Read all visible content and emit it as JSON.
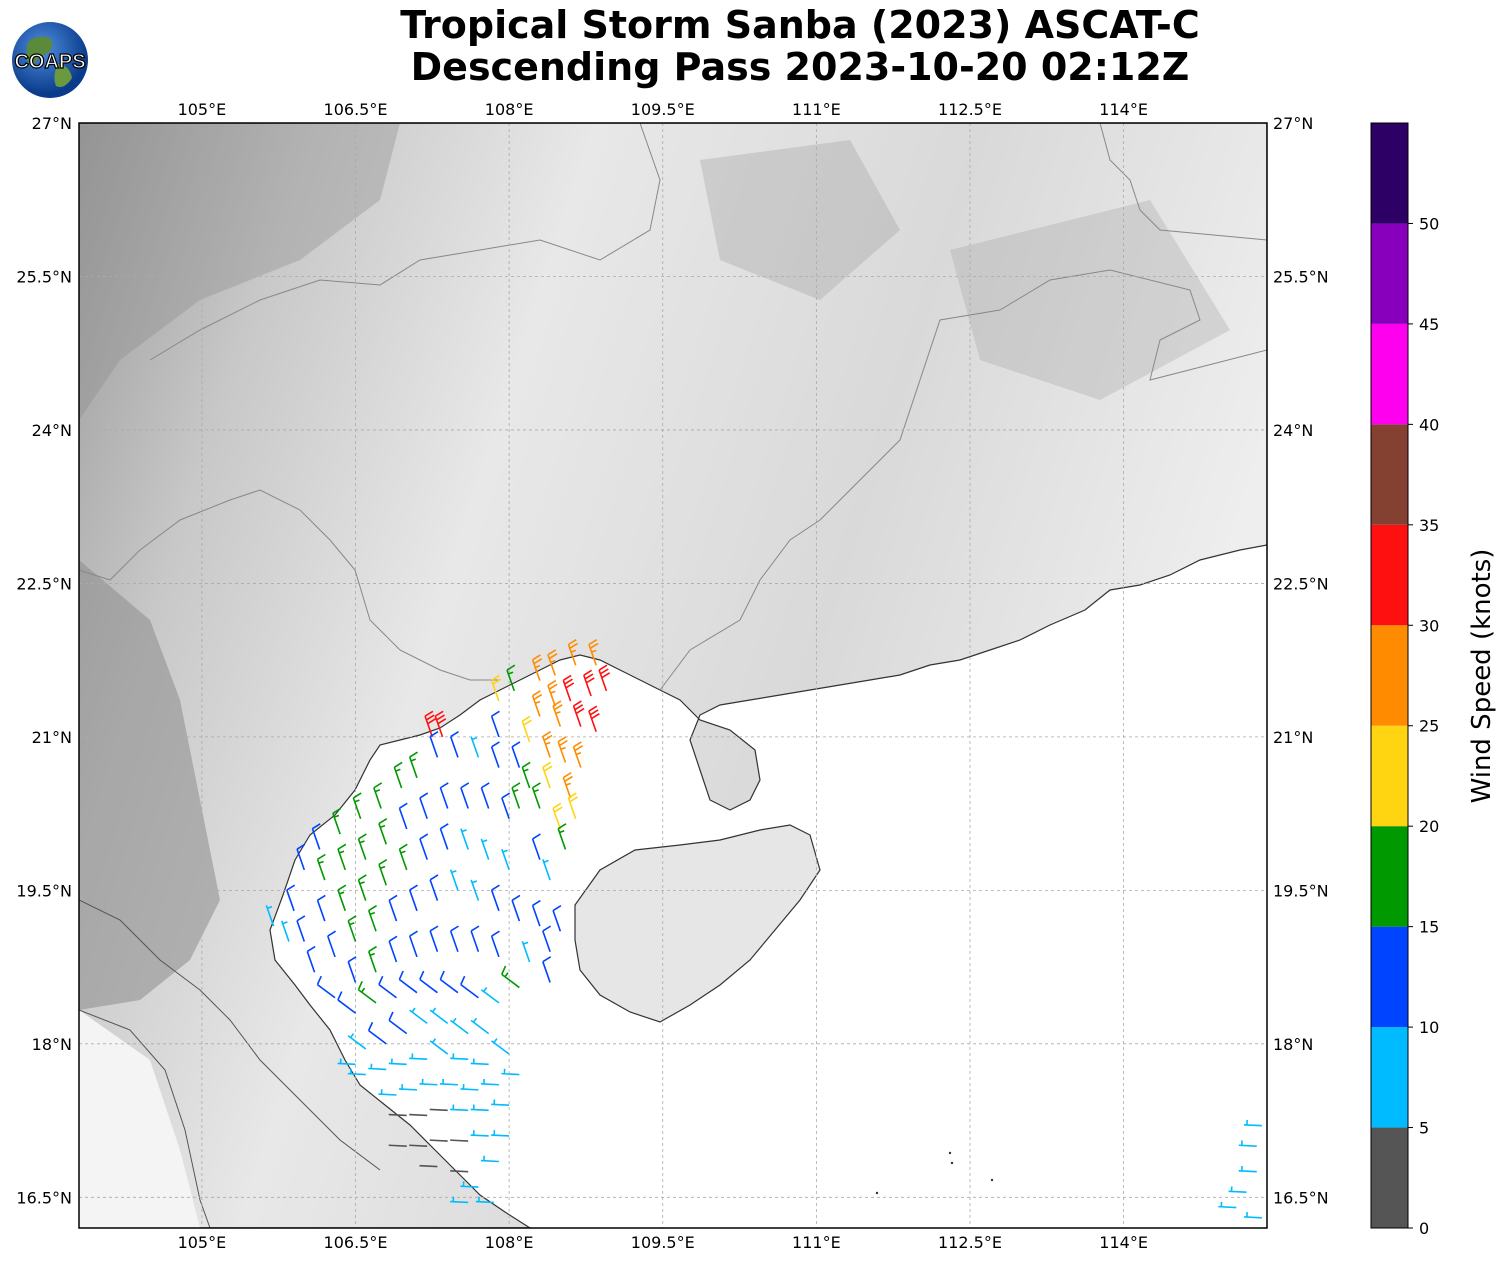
{
  "title": {
    "line1": "Tropical Storm Sanba (2023) ASCAT-C",
    "line2": "Descending Pass 2023-10-20 02:12Z"
  },
  "logo": {
    "text": "COAPS",
    "icon": "globe-logo-icon"
  },
  "map": {
    "lon_range": [
      103.8,
      115.4
    ],
    "lat_range": [
      16.2,
      27.0
    ],
    "lon_ticks": [
      105,
      106.5,
      108,
      109.5,
      111,
      112.5,
      114
    ],
    "lon_tick_labels": [
      "105°E",
      "106.5°E",
      "108°E",
      "109.5°E",
      "111°E",
      "112.5°E",
      "114°E"
    ],
    "lat_ticks": [
      27,
      25.5,
      24,
      22.5,
      21,
      19.5,
      18,
      16.5
    ],
    "lat_tick_labels": [
      "27°N",
      "25.5°N",
      "24°N",
      "22.5°N",
      "21°N",
      "19.5°N",
      "18°N",
      "16.5°N"
    ],
    "grid": true,
    "background": "grayscale topography"
  },
  "colorbar": {
    "label": "Wind Speed (knots)",
    "ticks": [
      0,
      5,
      10,
      15,
      20,
      25,
      30,
      35,
      40,
      45,
      50
    ],
    "tick_labels": [
      "0",
      "5",
      "10",
      "15",
      "20",
      "25",
      "30",
      "35",
      "40",
      "45",
      "50"
    ],
    "bins": [
      {
        "from": 0,
        "to": 5,
        "color": "#555555"
      },
      {
        "from": 5,
        "to": 10,
        "color": "#00bbff"
      },
      {
        "from": 10,
        "to": 15,
        "color": "#0044ff"
      },
      {
        "from": 15,
        "to": 20,
        "color": "#009900"
      },
      {
        "from": 20,
        "to": 25,
        "color": "#ffd410"
      },
      {
        "from": 25,
        "to": 30,
        "color": "#ff8c00"
      },
      {
        "from": 30,
        "to": 35,
        "color": "#ff1010"
      },
      {
        "from": 35,
        "to": 40,
        "color": "#844030"
      },
      {
        "from": 40,
        "to": 45,
        "color": "#ff00ee"
      },
      {
        "from": 45,
        "to": 50,
        "color": "#8800bb"
      },
      {
        "from": 50,
        "to": 55,
        "color": "#2d0066"
      }
    ]
  },
  "chart_data": {
    "type": "scatter",
    "description_free": true,
    "series": [
      {
        "name": "",
        "wind_barbs": [
          {
            "lon": 107.25,
            "lat": 21.0,
            "spd": 32
          },
          {
            "lon": 107.35,
            "lat": 21.0,
            "spd": 32
          },
          {
            "lon": 107.9,
            "lat": 21.35,
            "spd": 22
          },
          {
            "lon": 108.05,
            "lat": 21.45,
            "spd": 17
          },
          {
            "lon": 108.3,
            "lat": 21.55,
            "spd": 27
          },
          {
            "lon": 108.45,
            "lat": 21.6,
            "spd": 27
          },
          {
            "lon": 108.65,
            "lat": 21.7,
            "spd": 27
          },
          {
            "lon": 108.85,
            "lat": 21.7,
            "spd": 27
          },
          {
            "lon": 108.45,
            "lat": 21.3,
            "spd": 27
          },
          {
            "lon": 108.6,
            "lat": 21.35,
            "spd": 31
          },
          {
            "lon": 108.8,
            "lat": 21.4,
            "spd": 32
          },
          {
            "lon": 108.95,
            "lat": 21.45,
            "spd": 32
          },
          {
            "lon": 108.3,
            "lat": 21.2,
            "spd": 27
          },
          {
            "lon": 108.5,
            "lat": 21.1,
            "spd": 27
          },
          {
            "lon": 108.7,
            "lat": 21.1,
            "spd": 31
          },
          {
            "lon": 108.85,
            "lat": 21.05,
            "spd": 32
          },
          {
            "lon": 108.2,
            "lat": 20.95,
            "spd": 22
          },
          {
            "lon": 108.4,
            "lat": 20.8,
            "spd": 27
          },
          {
            "lon": 108.55,
            "lat": 20.75,
            "spd": 27
          },
          {
            "lon": 108.7,
            "lat": 20.7,
            "spd": 27
          },
          {
            "lon": 108.2,
            "lat": 20.5,
            "spd": 17
          },
          {
            "lon": 108.4,
            "lat": 20.5,
            "spd": 22
          },
          {
            "lon": 108.6,
            "lat": 20.4,
            "spd": 27
          },
          {
            "lon": 108.65,
            "lat": 20.2,
            "spd": 22
          },
          {
            "lon": 108.1,
            "lat": 20.3,
            "spd": 17
          },
          {
            "lon": 108.3,
            "lat": 20.3,
            "spd": 17
          },
          {
            "lon": 108.5,
            "lat": 20.1,
            "spd": 22
          },
          {
            "lon": 108.55,
            "lat": 19.9,
            "spd": 17
          },
          {
            "lon": 107.3,
            "lat": 20.8,
            "spd": 12
          },
          {
            "lon": 107.5,
            "lat": 20.8,
            "spd": 12
          },
          {
            "lon": 107.7,
            "lat": 20.8,
            "spd": 7
          },
          {
            "lon": 107.9,
            "lat": 20.7,
            "spd": 12
          },
          {
            "lon": 108.1,
            "lat": 20.7,
            "spd": 12
          },
          {
            "lon": 107.9,
            "lat": 21.0,
            "spd": 12
          },
          {
            "lon": 107.1,
            "lat": 20.6,
            "spd": 17
          },
          {
            "lon": 106.95,
            "lat": 20.5,
            "spd": 17
          },
          {
            "lon": 106.75,
            "lat": 20.3,
            "spd": 17
          },
          {
            "lon": 106.55,
            "lat": 20.2,
            "spd": 17
          },
          {
            "lon": 106.35,
            "lat": 20.05,
            "spd": 17
          },
          {
            "lon": 106.15,
            "lat": 19.9,
            "spd": 12
          },
          {
            "lon": 106.0,
            "lat": 19.7,
            "spd": 12
          },
          {
            "lon": 105.9,
            "lat": 19.3,
            "spd": 12
          },
          {
            "lon": 105.7,
            "lat": 19.15,
            "spd": 7
          },
          {
            "lon": 105.85,
            "lat": 19.0,
            "spd": 7
          },
          {
            "lon": 106.2,
            "lat": 19.6,
            "spd": 17
          },
          {
            "lon": 106.4,
            "lat": 19.7,
            "spd": 17
          },
          {
            "lon": 106.6,
            "lat": 19.8,
            "spd": 17
          },
          {
            "lon": 106.8,
            "lat": 19.95,
            "spd": 17
          },
          {
            "lon": 107.0,
            "lat": 20.1,
            "spd": 12
          },
          {
            "lon": 107.2,
            "lat": 20.2,
            "spd": 12
          },
          {
            "lon": 107.4,
            "lat": 20.3,
            "spd": 12
          },
          {
            "lon": 107.6,
            "lat": 20.3,
            "spd": 12
          },
          {
            "lon": 107.8,
            "lat": 20.3,
            "spd": 12
          },
          {
            "lon": 108.0,
            "lat": 20.2,
            "spd": 12
          },
          {
            "lon": 108.3,
            "lat": 19.8,
            "spd": 12
          },
          {
            "lon": 108.4,
            "lat": 19.6,
            "spd": 7
          },
          {
            "lon": 108.0,
            "lat": 19.7,
            "spd": 7
          },
          {
            "lon": 107.8,
            "lat": 19.8,
            "spd": 7
          },
          {
            "lon": 107.6,
            "lat": 19.9,
            "spd": 7
          },
          {
            "lon": 107.4,
            "lat": 19.9,
            "spd": 12
          },
          {
            "lon": 107.2,
            "lat": 19.8,
            "spd": 12
          },
          {
            "lon": 107.0,
            "lat": 19.7,
            "spd": 17
          },
          {
            "lon": 106.8,
            "lat": 19.55,
            "spd": 17
          },
          {
            "lon": 106.6,
            "lat": 19.4,
            "spd": 17
          },
          {
            "lon": 106.4,
            "lat": 19.3,
            "spd": 17
          },
          {
            "lon": 106.2,
            "lat": 19.2,
            "spd": 12
          },
          {
            "lon": 106.0,
            "lat": 19.0,
            "spd": 12
          },
          {
            "lon": 106.1,
            "lat": 18.7,
            "spd": 12
          },
          {
            "lon": 106.3,
            "lat": 18.85,
            "spd": 12
          },
          {
            "lon": 106.5,
            "lat": 19.0,
            "spd": 17
          },
          {
            "lon": 106.7,
            "lat": 19.1,
            "spd": 17
          },
          {
            "lon": 106.9,
            "lat": 19.2,
            "spd": 12
          },
          {
            "lon": 107.1,
            "lat": 19.3,
            "spd": 12
          },
          {
            "lon": 107.3,
            "lat": 19.4,
            "spd": 12
          },
          {
            "lon": 107.5,
            "lat": 19.5,
            "spd": 7
          },
          {
            "lon": 107.7,
            "lat": 19.4,
            "spd": 7
          },
          {
            "lon": 107.9,
            "lat": 19.3,
            "spd": 12
          },
          {
            "lon": 108.1,
            "lat": 19.2,
            "spd": 12
          },
          {
            "lon": 108.3,
            "lat": 19.15,
            "spd": 12
          },
          {
            "lon": 108.5,
            "lat": 19.1,
            "spd": 12
          },
          {
            "lon": 108.4,
            "lat": 18.9,
            "spd": 12
          },
          {
            "lon": 108.4,
            "lat": 18.6,
            "spd": 12
          },
          {
            "lon": 108.2,
            "lat": 18.8,
            "spd": 7
          },
          {
            "lon": 108.1,
            "lat": 18.55,
            "spd": 17
          },
          {
            "lon": 107.9,
            "lat": 18.85,
            "spd": 12
          },
          {
            "lon": 107.7,
            "lat": 18.9,
            "spd": 12
          },
          {
            "lon": 107.5,
            "lat": 18.9,
            "spd": 12
          },
          {
            "lon": 107.3,
            "lat": 18.9,
            "spd": 12
          },
          {
            "lon": 107.1,
            "lat": 18.85,
            "spd": 12
          },
          {
            "lon": 106.9,
            "lat": 18.8,
            "spd": 12
          },
          {
            "lon": 106.7,
            "lat": 18.7,
            "spd": 17
          },
          {
            "lon": 106.5,
            "lat": 18.6,
            "spd": 12
          },
          {
            "lon": 106.3,
            "lat": 18.45,
            "spd": 12
          },
          {
            "lon": 106.5,
            "lat": 18.3,
            "spd": 12
          },
          {
            "lon": 106.7,
            "lat": 18.4,
            "spd": 17
          },
          {
            "lon": 106.9,
            "lat": 18.45,
            "spd": 12
          },
          {
            "lon": 107.1,
            "lat": 18.5,
            "spd": 12
          },
          {
            "lon": 107.3,
            "lat": 18.5,
            "spd": 12
          },
          {
            "lon": 107.5,
            "lat": 18.5,
            "spd": 12
          },
          {
            "lon": 107.7,
            "lat": 18.45,
            "spd": 12
          },
          {
            "lon": 107.9,
            "lat": 18.4,
            "spd": 7
          },
          {
            "lon": 107.8,
            "lat": 18.1,
            "spd": 7
          },
          {
            "lon": 107.6,
            "lat": 18.1,
            "spd": 7
          },
          {
            "lon": 107.4,
            "lat": 18.2,
            "spd": 7
          },
          {
            "lon": 107.2,
            "lat": 18.2,
            "spd": 7
          },
          {
            "lon": 107.0,
            "lat": 18.1,
            "spd": 12
          },
          {
            "lon": 106.8,
            "lat": 18.0,
            "spd": 12
          },
          {
            "lon": 106.6,
            "lat": 17.95,
            "spd": 7
          },
          {
            "lon": 106.8,
            "lat": 17.75,
            "spd": 7
          },
          {
            "lon": 107.0,
            "lat": 17.8,
            "spd": 7
          },
          {
            "lon": 107.2,
            "lat": 17.85,
            "spd": 7
          },
          {
            "lon": 107.4,
            "lat": 17.9,
            "spd": 7
          },
          {
            "lon": 107.6,
            "lat": 17.85,
            "spd": 7
          },
          {
            "lon": 107.8,
            "lat": 17.8,
            "spd": 7
          },
          {
            "lon": 108.0,
            "lat": 17.9,
            "spd": 7
          },
          {
            "lon": 108.1,
            "lat": 17.7,
            "spd": 7
          },
          {
            "lon": 107.9,
            "lat": 17.6,
            "spd": 7
          },
          {
            "lon": 107.7,
            "lat": 17.55,
            "spd": 7
          },
          {
            "lon": 107.5,
            "lat": 17.6,
            "spd": 7
          },
          {
            "lon": 107.3,
            "lat": 17.6,
            "spd": 7
          },
          {
            "lon": 107.1,
            "lat": 17.55,
            "spd": 7
          },
          {
            "lon": 106.9,
            "lat": 17.5,
            "spd": 7
          },
          {
            "lon": 106.6,
            "lat": 17.7,
            "spd": 7
          },
          {
            "lon": 106.5,
            "lat": 17.8,
            "spd": 7
          },
          {
            "lon": 107.0,
            "lat": 17.3,
            "spd": 3
          },
          {
            "lon": 107.2,
            "lat": 17.3,
            "spd": 3
          },
          {
            "lon": 107.4,
            "lat": 17.35,
            "spd": 3
          },
          {
            "lon": 107.6,
            "lat": 17.35,
            "spd": 7
          },
          {
            "lon": 107.8,
            "lat": 17.35,
            "spd": 7
          },
          {
            "lon": 108.0,
            "lat": 17.4,
            "spd": 7
          },
          {
            "lon": 108.0,
            "lat": 17.1,
            "spd": 7
          },
          {
            "lon": 107.8,
            "lat": 17.1,
            "spd": 7
          },
          {
            "lon": 107.6,
            "lat": 17.05,
            "spd": 3
          },
          {
            "lon": 107.4,
            "lat": 17.05,
            "spd": 3
          },
          {
            "lon": 107.2,
            "lat": 17.0,
            "spd": 3
          },
          {
            "lon": 107.0,
            "lat": 17.0,
            "spd": 3
          },
          {
            "lon": 107.3,
            "lat": 16.8,
            "spd": 3
          },
          {
            "lon": 107.6,
            "lat": 16.75,
            "spd": 3
          },
          {
            "lon": 107.9,
            "lat": 16.85,
            "spd": 7
          },
          {
            "lon": 107.7,
            "lat": 16.6,
            "spd": 7
          },
          {
            "lon": 107.85,
            "lat": 16.45,
            "spd": 7
          },
          {
            "lon": 107.6,
            "lat": 16.45,
            "spd": 7
          },
          {
            "lon": 115.3,
            "lat": 17.0,
            "spd": 7
          },
          {
            "lon": 115.3,
            "lat": 16.75,
            "spd": 7
          },
          {
            "lon": 115.2,
            "lat": 16.55,
            "spd": 7
          },
          {
            "lon": 115.1,
            "lat": 16.4,
            "spd": 7
          },
          {
            "lon": 115.35,
            "lat": 17.2,
            "spd": 7
          },
          {
            "lon": 115.35,
            "lat": 16.3,
            "spd": 7
          }
        ]
      }
    ]
  }
}
